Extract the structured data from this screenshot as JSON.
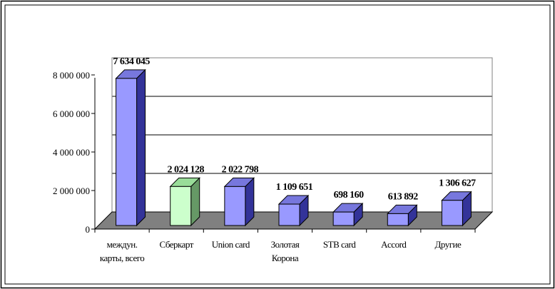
{
  "chart_data": {
    "type": "bar",
    "title": "",
    "xlabel": "",
    "ylabel": "",
    "ylim": [
      0,
      8000000
    ],
    "grid": true,
    "legend": "none",
    "y_ticks": [
      "0",
      "2 000 000",
      "4 000 000",
      "6 000 000",
      "8 000 000"
    ],
    "y_tick_values": [
      0,
      2000000,
      4000000,
      6000000,
      8000000
    ],
    "categories": [
      [
        "междун.",
        "карты, всего"
      ],
      [
        "Сберкарт"
      ],
      [
        "Union card"
      ],
      [
        "Золотая",
        "Корона"
      ],
      [
        "STB card"
      ],
      [
        "Accord"
      ],
      [
        "Другие"
      ]
    ],
    "values": [
      7634045,
      2024128,
      2022798,
      1109651,
      698160,
      613892,
      1306627
    ],
    "data_labels": [
      "7 634 045",
      "2 024 128",
      "2 022 798",
      "1 109 651",
      "698 160",
      "613 892",
      "1 306 627"
    ],
    "colors": {
      "bar_front": "#9999ff",
      "bar_top": "#7777dd",
      "bar_side": "#333399",
      "highlight_front": "#ccffcc",
      "highlight_top": "#99dd99",
      "highlight_side": "#669966",
      "highlight_index": 1,
      "floor": "#808080",
      "wall": "#ffffff",
      "gridline": "#000000"
    }
  }
}
